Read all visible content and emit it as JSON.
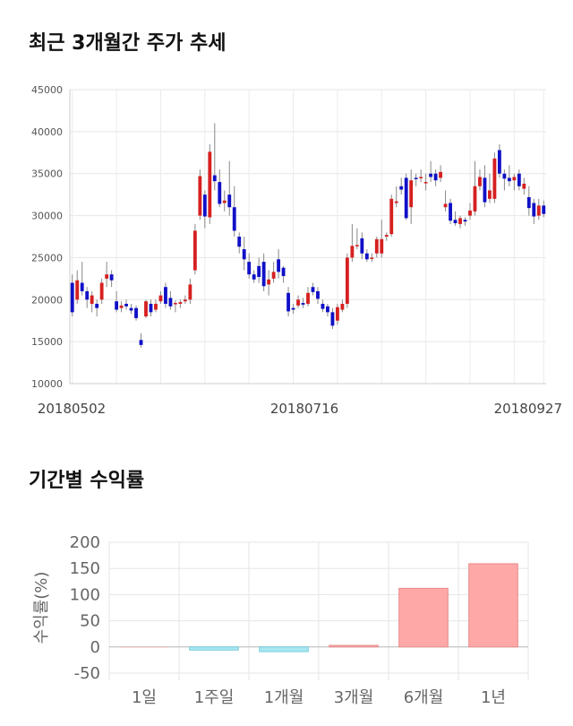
{
  "section1": {
    "title": "최근 3개월간 주가 추세"
  },
  "section2": {
    "title": "기간별 수익률"
  },
  "chart_data": [
    {
      "type": "candlestick",
      "title": "최근 3개월간 주가 추세",
      "ylim": [
        10000,
        45000
      ],
      "yticks": [
        10000,
        15000,
        20000,
        25000,
        30000,
        35000,
        40000,
        45000
      ],
      "xtick_labels": [
        "20180502",
        "20180716",
        "20180927"
      ],
      "grid": true,
      "up_color": "#d62020",
      "down_color": "#1010c8",
      "candles": [
        [
          22000,
          18500,
          23000,
          18000
        ],
        [
          20000,
          22300,
          23500,
          19500
        ],
        [
          22000,
          21000,
          24500,
          20500
        ],
        [
          21000,
          20000,
          21500,
          19000
        ],
        [
          19500,
          20500,
          21000,
          18500
        ],
        [
          19500,
          19000,
          20000,
          18000
        ],
        [
          20000,
          22000,
          22500,
          19500
        ],
        [
          22500,
          23000,
          24500,
          21500
        ],
        [
          23000,
          22300,
          23500,
          21500
        ],
        [
          19800,
          18800,
          21000,
          18500
        ],
        [
          19000,
          19300,
          19800,
          18500
        ],
        [
          19500,
          19200,
          20000,
          18800
        ],
        [
          19000,
          18700,
          19500,
          18300
        ],
        [
          19000,
          17800,
          19300,
          17500
        ],
        [
          15200,
          14600,
          16000,
          14300
        ],
        [
          18000,
          19800,
          20000,
          17800
        ],
        [
          19500,
          18500,
          20000,
          18000
        ],
        [
          18800,
          19500,
          20000,
          18500
        ],
        [
          19800,
          20500,
          21000,
          19500
        ],
        [
          21500,
          19500,
          22000,
          19000
        ],
        [
          20200,
          19200,
          21000,
          18800
        ],
        [
          19500,
          19600,
          19900,
          18500
        ],
        [
          19500,
          19700,
          20000,
          19000
        ],
        [
          19800,
          20000,
          20500,
          19500
        ],
        [
          20000,
          21800,
          22500,
          19500
        ],
        [
          23500,
          28200,
          29000,
          23000
        ],
        [
          30000,
          34700,
          35500,
          29500
        ],
        [
          32500,
          29900,
          33000,
          28500
        ],
        [
          29800,
          37600,
          38500,
          29000
        ],
        [
          34800,
          34100,
          41000,
          33000
        ],
        [
          34000,
          31400,
          35500,
          31000
        ],
        [
          31500,
          31800,
          33000,
          30500
        ],
        [
          32500,
          31000,
          36500,
          30000
        ],
        [
          31000,
          28200,
          33500,
          27500
        ],
        [
          27500,
          26300,
          28000,
          25500
        ],
        [
          26000,
          24800,
          27500,
          23500
        ],
        [
          24500,
          23000,
          25500,
          22500
        ],
        [
          23000,
          22400,
          23500,
          22000
        ],
        [
          24000,
          22700,
          25000,
          22000
        ],
        [
          24500,
          21600,
          25500,
          21000
        ],
        [
          21800,
          22400,
          23500,
          20500
        ],
        [
          22500,
          23300,
          24500,
          22000
        ],
        [
          24800,
          23300,
          26000,
          22500
        ],
        [
          23800,
          22800,
          24000,
          22000
        ],
        [
          20800,
          18600,
          21500,
          18000
        ],
        [
          19000,
          18800,
          19500,
          18300
        ],
        [
          19300,
          20000,
          20500,
          19000
        ],
        [
          19600,
          19400,
          20200,
          19000
        ],
        [
          19500,
          20800,
          21500,
          19200
        ],
        [
          21500,
          20900,
          22000,
          20500
        ],
        [
          21000,
          20100,
          21500,
          19500
        ],
        [
          19500,
          18900,
          20000,
          18500
        ],
        [
          19200,
          18500,
          19500,
          18000
        ],
        [
          18500,
          16900,
          19000,
          16500
        ],
        [
          17500,
          19100,
          19500,
          17000
        ],
        [
          18800,
          19500,
          20000,
          18500
        ],
        [
          19500,
          25000,
          25500,
          19000
        ],
        [
          25000,
          26400,
          29000,
          24500
        ],
        [
          26500,
          26500,
          28500,
          26000
        ],
        [
          27300,
          25500,
          28000,
          24800
        ],
        [
          25500,
          24800,
          26000,
          24500
        ],
        [
          25000,
          25000,
          25500,
          24500
        ],
        [
          25500,
          27200,
          27500,
          25000
        ],
        [
          25500,
          27200,
          29500,
          25000
        ],
        [
          27500,
          27700,
          28000,
          27000
        ],
        [
          27800,
          32000,
          32500,
          27500
        ],
        [
          31500,
          31700,
          33500,
          31000
        ],
        [
          33500,
          33100,
          34500,
          32500
        ],
        [
          34500,
          29700,
          35000,
          29500
        ],
        [
          31000,
          34200,
          35500,
          29000
        ],
        [
          34500,
          34400,
          35000,
          33500
        ],
        [
          34500,
          34600,
          35500,
          34000
        ],
        [
          34000,
          34000,
          35000,
          33000
        ],
        [
          35000,
          34600,
          36500,
          34000
        ],
        [
          35000,
          34200,
          35500,
          33500
        ],
        [
          34500,
          35200,
          36000,
          34000
        ],
        [
          31000,
          31400,
          33000,
          30500
        ],
        [
          31500,
          29400,
          32000,
          29000
        ],
        [
          29500,
          29100,
          30500,
          28800
        ],
        [
          29000,
          29700,
          30000,
          28500
        ],
        [
          29500,
          29300,
          29800,
          28800
        ],
        [
          30000,
          30600,
          31500,
          29500
        ],
        [
          30500,
          33500,
          36500,
          30000
        ],
        [
          33500,
          34600,
          35500,
          33000
        ],
        [
          34500,
          31600,
          36000,
          31000
        ],
        [
          32000,
          33000,
          35000,
          31500
        ],
        [
          32000,
          36800,
          37500,
          31500
        ],
        [
          37800,
          35000,
          38500,
          34500
        ],
        [
          35000,
          34400,
          35500,
          33000
        ],
        [
          34500,
          34100,
          36000,
          33500
        ],
        [
          34200,
          34600,
          35000,
          33000
        ],
        [
          35000,
          33500,
          35500,
          33000
        ],
        [
          33200,
          33800,
          34500,
          32500
        ],
        [
          32200,
          30900,
          33500,
          30000
        ],
        [
          31500,
          29900,
          32000,
          29000
        ],
        [
          30000,
          31200,
          32000,
          29500
        ],
        [
          31200,
          30200,
          31800,
          29800
        ]
      ]
    },
    {
      "type": "bar",
      "title": "기간별 수익률",
      "ylabel": "수익률(%)",
      "categories": [
        "1일",
        "1주일",
        "1개월",
        "3개월",
        "6개월",
        "1년"
      ],
      "values": [
        0,
        -6,
        -9,
        3,
        112,
        159
      ],
      "ylim": [
        -50,
        200
      ],
      "yticks": [
        -50,
        0,
        50,
        100,
        150,
        200
      ],
      "grid": true,
      "positive_color": "#ffa8a8",
      "negative_color": "#a8e6f0"
    }
  ]
}
